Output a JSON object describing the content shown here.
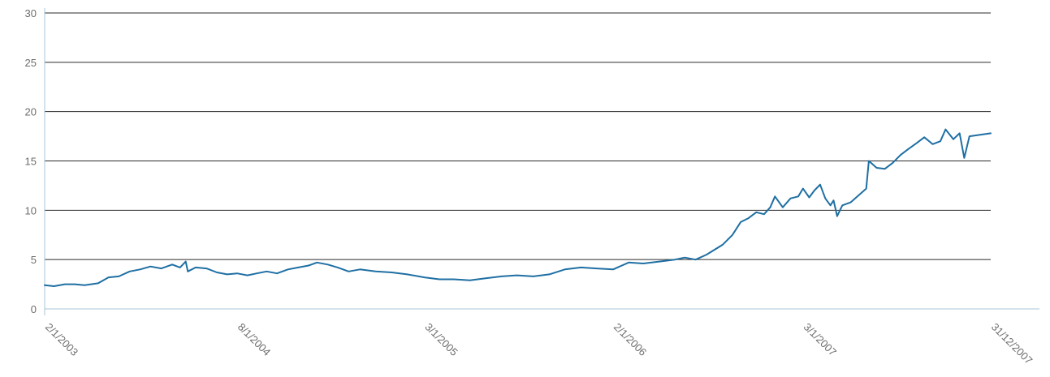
{
  "chart_data": {
    "type": "line",
    "title": "",
    "xlabel": "",
    "ylabel": "",
    "xlim": [
      "2003-01-02",
      "2007-12-31"
    ],
    "ylim": [
      0,
      30
    ],
    "yticks": [
      0,
      5,
      10,
      15,
      20,
      25,
      30
    ],
    "xtick_labels": [
      {
        "label": "2/1/2003",
        "date": "2003-01-02"
      },
      {
        "label": "8/1/2004",
        "date": "2004-01-08"
      },
      {
        "label": "3/1/2005",
        "date": "2005-01-03"
      },
      {
        "label": "2/1/2006",
        "date": "2006-01-02"
      },
      {
        "label": "3/1/2007",
        "date": "2007-01-03"
      },
      {
        "label": "31/12/2007",
        "date": "2007-12-31"
      }
    ],
    "grid": true,
    "colors": {
      "line": "#1f6fa3",
      "grid": "#2b2b2b",
      "axis": "#a9c4d9",
      "tick_text": "#6d6d6d"
    },
    "series": [
      {
        "name": "",
        "points": [
          [
            "2003-01-02",
            2.4
          ],
          [
            "2003-01-20",
            2.3
          ],
          [
            "2003-02-10",
            2.5
          ],
          [
            "2003-03-01",
            2.5
          ],
          [
            "2003-03-20",
            2.4
          ],
          [
            "2003-04-15",
            2.6
          ],
          [
            "2003-05-05",
            3.2
          ],
          [
            "2003-05-25",
            3.3
          ],
          [
            "2003-06-15",
            3.8
          ],
          [
            "2003-07-05",
            4.0
          ],
          [
            "2003-07-25",
            4.3
          ],
          [
            "2003-08-15",
            4.1
          ],
          [
            "2003-09-05",
            4.5
          ],
          [
            "2003-09-20",
            4.2
          ],
          [
            "2003-10-01",
            4.8
          ],
          [
            "2003-10-05",
            3.8
          ],
          [
            "2003-10-20",
            4.2
          ],
          [
            "2003-11-10",
            4.1
          ],
          [
            "2003-11-30",
            3.7
          ],
          [
            "2003-12-20",
            3.5
          ],
          [
            "2004-01-08",
            3.6
          ],
          [
            "2004-01-28",
            3.4
          ],
          [
            "2004-02-15",
            3.6
          ],
          [
            "2004-03-05",
            3.8
          ],
          [
            "2004-03-25",
            3.6
          ],
          [
            "2004-04-15",
            4.0
          ],
          [
            "2004-05-05",
            4.2
          ],
          [
            "2004-05-25",
            4.4
          ],
          [
            "2004-06-10",
            4.7
          ],
          [
            "2004-07-01",
            4.5
          ],
          [
            "2004-07-20",
            4.2
          ],
          [
            "2004-08-10",
            3.8
          ],
          [
            "2004-09-01",
            4.0
          ],
          [
            "2004-10-01",
            3.8
          ],
          [
            "2004-11-01",
            3.7
          ],
          [
            "2004-12-01",
            3.5
          ],
          [
            "2005-01-03",
            3.2
          ],
          [
            "2005-02-01",
            3.0
          ],
          [
            "2005-03-01",
            3.0
          ],
          [
            "2005-04-01",
            2.9
          ],
          [
            "2005-05-01",
            3.1
          ],
          [
            "2005-06-01",
            3.3
          ],
          [
            "2005-07-01",
            3.4
          ],
          [
            "2005-08-01",
            3.3
          ],
          [
            "2005-09-01",
            3.5
          ],
          [
            "2005-10-01",
            4.0
          ],
          [
            "2005-11-01",
            4.2
          ],
          [
            "2005-12-01",
            4.1
          ],
          [
            "2006-01-02",
            4.0
          ],
          [
            "2006-02-01",
            4.7
          ],
          [
            "2006-03-01",
            4.6
          ],
          [
            "2006-04-01",
            4.8
          ],
          [
            "2006-05-01",
            5.0
          ],
          [
            "2006-05-20",
            5.2
          ],
          [
            "2006-06-10",
            5.0
          ],
          [
            "2006-07-01",
            5.5
          ],
          [
            "2006-08-01",
            6.5
          ],
          [
            "2006-08-20",
            7.5
          ],
          [
            "2006-09-05",
            8.8
          ],
          [
            "2006-09-20",
            9.2
          ],
          [
            "2006-10-05",
            9.8
          ],
          [
            "2006-10-20",
            9.6
          ],
          [
            "2006-11-01",
            10.3
          ],
          [
            "2006-11-10",
            11.4
          ],
          [
            "2006-11-25",
            10.3
          ],
          [
            "2006-12-10",
            11.2
          ],
          [
            "2006-12-25",
            11.4
          ],
          [
            "2007-01-03",
            12.2
          ],
          [
            "2007-01-15",
            11.3
          ],
          [
            "2007-01-25",
            12.0
          ],
          [
            "2007-02-05",
            12.6
          ],
          [
            "2007-02-15",
            11.2
          ],
          [
            "2007-02-25",
            10.5
          ],
          [
            "2007-03-03",
            11.0
          ],
          [
            "2007-03-10",
            9.4
          ],
          [
            "2007-03-20",
            10.5
          ],
          [
            "2007-04-05",
            10.8
          ],
          [
            "2007-04-20",
            11.5
          ],
          [
            "2007-05-05",
            12.2
          ],
          [
            "2007-05-10",
            15.0
          ],
          [
            "2007-05-25",
            14.3
          ],
          [
            "2007-06-10",
            14.2
          ],
          [
            "2007-06-25",
            14.8
          ],
          [
            "2007-07-10",
            15.6
          ],
          [
            "2007-07-25",
            16.2
          ],
          [
            "2007-08-10",
            16.8
          ],
          [
            "2007-08-25",
            17.4
          ],
          [
            "2007-09-10",
            16.7
          ],
          [
            "2007-09-25",
            17.0
          ],
          [
            "2007-10-05",
            18.2
          ],
          [
            "2007-10-20",
            17.2
          ],
          [
            "2007-11-01",
            17.8
          ],
          [
            "2007-11-10",
            15.3
          ],
          [
            "2007-11-20",
            17.5
          ],
          [
            "2007-12-31",
            17.8
          ]
        ]
      }
    ]
  }
}
